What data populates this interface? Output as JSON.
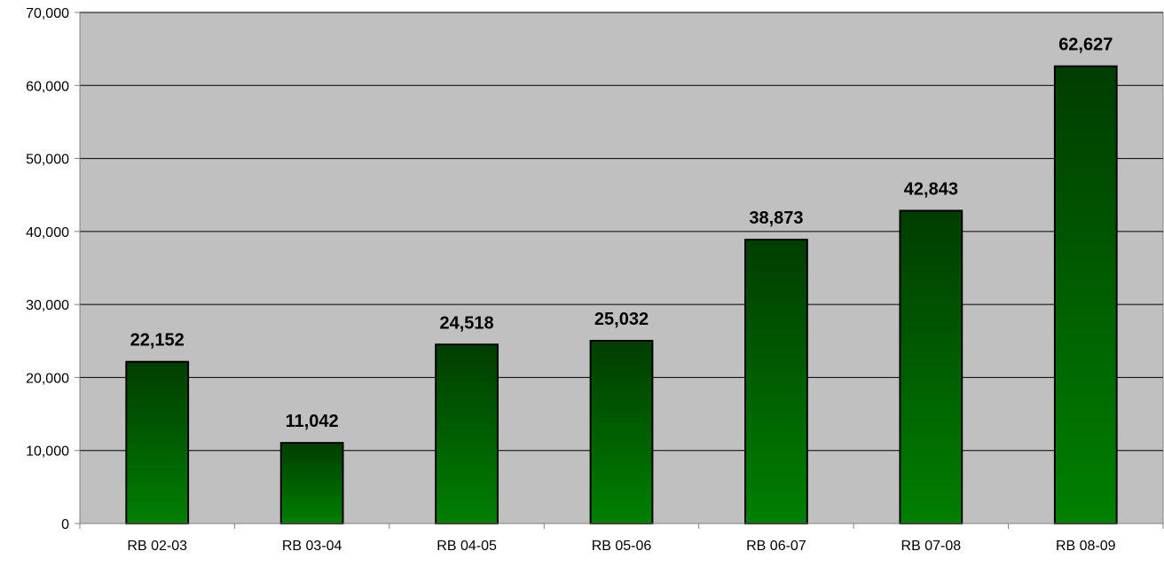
{
  "chart_data": {
    "type": "bar",
    "title": "",
    "xlabel": "",
    "ylabel": "",
    "categories": [
      "RB 02-03",
      "RB 03-04",
      "RB 04-05",
      "RB 05-06",
      "RB 06-07",
      "RB 07-08",
      "RB 08-09"
    ],
    "values": [
      22152,
      11042,
      24518,
      25032,
      38873,
      42843,
      62627
    ],
    "data_labels": [
      "22,152",
      "11,042",
      "24,518",
      "25,032",
      "38,873",
      "42,843",
      "62,627"
    ],
    "ylim": [
      0,
      70000
    ],
    "yticks": [
      0,
      10000,
      20000,
      30000,
      40000,
      50000,
      60000,
      70000
    ],
    "ytick_labels": [
      "0",
      "10,000",
      "20,000",
      "30,000",
      "40,000",
      "50,000",
      "60,000",
      "70,000"
    ],
    "grid": true,
    "legend": "none",
    "colors": {
      "plot_background": "#c0c0c0",
      "bar_top": "#003d00",
      "bar_bottom": "#008000",
      "bar_outline": "#000000",
      "gridline": "#000000",
      "axis": "#808080"
    }
  }
}
